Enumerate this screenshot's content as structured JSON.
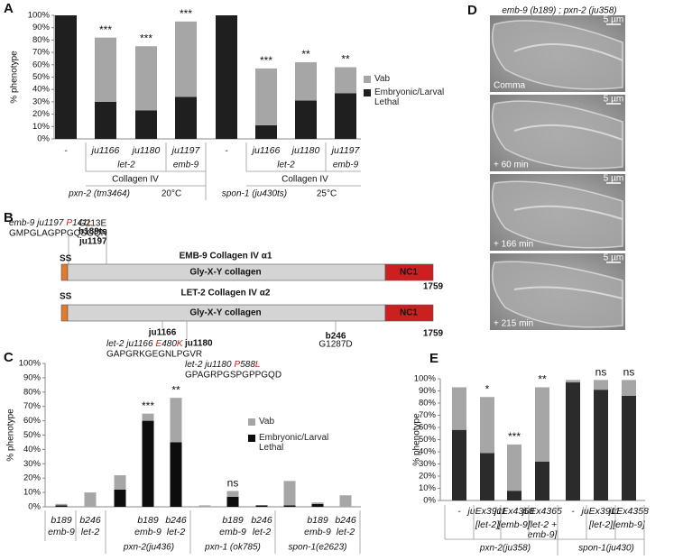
{
  "chart_data": [
    {
      "type": "stacked_bar",
      "panel": "A",
      "ylabel": "% phenotype",
      "categories": [
        "-",
        "ju1166",
        "ju1180",
        "ju1197",
        "-",
        "ju1166",
        "ju1180",
        "ju1197"
      ],
      "series": [
        {
          "name": "Embryonic/Larval Lethal",
          "color": "#1f1f1f",
          "values": [
            100,
            30,
            23,
            34,
            100,
            11,
            31,
            37
          ]
        },
        {
          "name": "Vab",
          "color": "#a6a6a6",
          "values": [
            0,
            52,
            52,
            61,
            0,
            46,
            31,
            21
          ]
        }
      ],
      "annotations": [
        null,
        "***",
        "***",
        "***",
        null,
        "***",
        "**",
        "**"
      ],
      "group_labels": [
        "let-2",
        "emb-9",
        "Collagen IV",
        "pxn-2 (tm3464)",
        "20°C",
        "let-2",
        "emb-9",
        "Collagen IV",
        "spon-1 (ju430ts)",
        "25°C"
      ],
      "ylim": [
        0,
        100
      ],
      "yticks": [
        {
          "value": 0,
          "label": "0%"
        },
        {
          "value": 10,
          "label": "10%"
        },
        {
          "value": 20,
          "label": "20%"
        },
        {
          "value": 30,
          "label": "30%"
        },
        {
          "value": 40,
          "label": "40%"
        },
        {
          "value": 50,
          "label": "50%"
        },
        {
          "value": 60,
          "label": "60%"
        },
        {
          "value": 70,
          "label": "70%"
        },
        {
          "value": 80,
          "label": "80%"
        },
        {
          "value": 90,
          "label": "90%"
        },
        {
          "value": 100,
          "label": "100%"
        }
      ],
      "legend": true
    },
    {
      "type": "stacked_bar",
      "panel": "C",
      "ylabel": "% phenotype",
      "categories": [
        "b189",
        "b246",
        null,
        "b189",
        "b246",
        null,
        "b189",
        "b246",
        null,
        "b189",
        "b246"
      ],
      "subcategories": [
        "emb-9",
        "let-2",
        null,
        "emb-9",
        "let-2",
        null,
        "emb-9",
        "let-2",
        null,
        "emb-9",
        "let-2"
      ],
      "series": [
        {
          "name": "Embryonic/Larval Lethal",
          "color": "#0d0d0d",
          "values": [
            1,
            0,
            12,
            60,
            45,
            0,
            7,
            1,
            1,
            2,
            0
          ]
        },
        {
          "name": "Vab",
          "color": "#a6a6a6",
          "values": [
            1,
            10,
            10,
            5,
            31,
            1,
            4,
            0,
            17,
            1,
            8
          ]
        }
      ],
      "annotations": [
        null,
        null,
        null,
        "***",
        "**",
        null,
        "ns",
        null,
        null,
        null,
        null
      ],
      "group_labels": [
        "pxn-2(ju436)",
        "pxn-1 (ok785)",
        "spon-1(e2623)"
      ],
      "ylim": [
        0,
        100
      ],
      "yticks": [
        {
          "value": 0,
          "label": "0%"
        },
        {
          "value": 10,
          "label": "10%"
        },
        {
          "value": 20,
          "label": "20%"
        },
        {
          "value": 30,
          "label": "30%"
        },
        {
          "value": 40,
          "label": "40%"
        },
        {
          "value": 50,
          "label": "50%"
        },
        {
          "value": 60,
          "label": "60%"
        },
        {
          "value": 70,
          "label": "70%"
        },
        {
          "value": 80,
          "label": "80%"
        },
        {
          "value": 90,
          "label": "90%"
        },
        {
          "value": 100,
          "label": "100%"
        }
      ],
      "legend": true
    },
    {
      "type": "stacked_bar",
      "panel": "E",
      "ylabel": "% phenotype",
      "categories": [
        "-",
        "juEx3911",
        "juEx4358",
        "juEx4365",
        "-",
        "juEx3911",
        "juEx4358"
      ],
      "subcategories": [
        null,
        "[let-2]",
        "[emb-9]",
        [
          "[let-2 +",
          "emb-9]"
        ],
        null,
        "[let-2]",
        "[emb-9]"
      ],
      "series": [
        {
          "color": "#2b2b2b",
          "values": [
            58,
            39,
            8,
            32,
            97,
            91,
            86
          ]
        },
        {
          "color": "#a6a6a6",
          "values": [
            35,
            46,
            38,
            61,
            2,
            8,
            13
          ]
        }
      ],
      "annotations": [
        null,
        "*",
        "***",
        "**",
        null,
        "ns",
        "ns"
      ],
      "group_labels": [
        "pxn-2(ju358)",
        "spon-1(ju430)"
      ],
      "ylim": [
        0,
        100
      ],
      "yticks": [
        {
          "value": 0,
          "label": "0%"
        },
        {
          "value": 10,
          "label": "10%"
        },
        {
          "value": 20,
          "label": "20%"
        },
        {
          "value": 30,
          "label": "30%"
        },
        {
          "value": 40,
          "label": "40%"
        },
        {
          "value": 50,
          "label": "50%"
        },
        {
          "value": 60,
          "label": "60%"
        },
        {
          "value": 70,
          "label": "70%"
        },
        {
          "value": 80,
          "label": "80%"
        },
        {
          "value": 90,
          "label": "90%"
        },
        {
          "value": 100,
          "label": "100%"
        }
      ],
      "legend": false
    }
  ],
  "panel_b": {
    "label": "B",
    "emb9": {
      "title": "EMB-9  Collagen IV α1",
      "ss": "SS",
      "domain": "Gly-X-Y collagen",
      "nc1": "NC1",
      "length": "1759",
      "mutation": {
        "allele": "emb-9 ju1197",
        "from": "P",
        "pos": "141",
        "to": "L"
      },
      "sequence": "GMPGLAGPPGQSGQN",
      "site": "ju1197",
      "site2_change": "G213E",
      "site2": "b189ts"
    },
    "let2": {
      "title": "LET-2  Collagen IV α2",
      "ss": "SS",
      "domain": "Gly-X-Y collagen",
      "nc1": "NC1",
      "length": "1759",
      "site1": "ju1166",
      "mutation1": {
        "allele": "let-2 ju1166",
        "from": "E",
        "pos": "480",
        "to": "K"
      },
      "sequence1": "GAPGRKGEGNLPGVR",
      "site2": "ju1180",
      "mutation2": {
        "allele": "let-2 ju1180",
        "from": "P",
        "pos": "588",
        "to": "L"
      },
      "sequence2": "GPAGRPGSPGPPGQD",
      "site3": "b246",
      "site3_change": "G1287D"
    }
  },
  "panel_d": {
    "label": "D",
    "title": "emb-9 (b189) ; pxn-2 (ju358)",
    "frames": [
      {
        "time": "Comma",
        "scale": "5 µm"
      },
      {
        "time": "+ 60 min",
        "scale": "5 µm"
      },
      {
        "time": "+ 166 min",
        "scale": "5 µm"
      },
      {
        "time": "+ 215 min",
        "scale": "5 µm"
      }
    ]
  }
}
